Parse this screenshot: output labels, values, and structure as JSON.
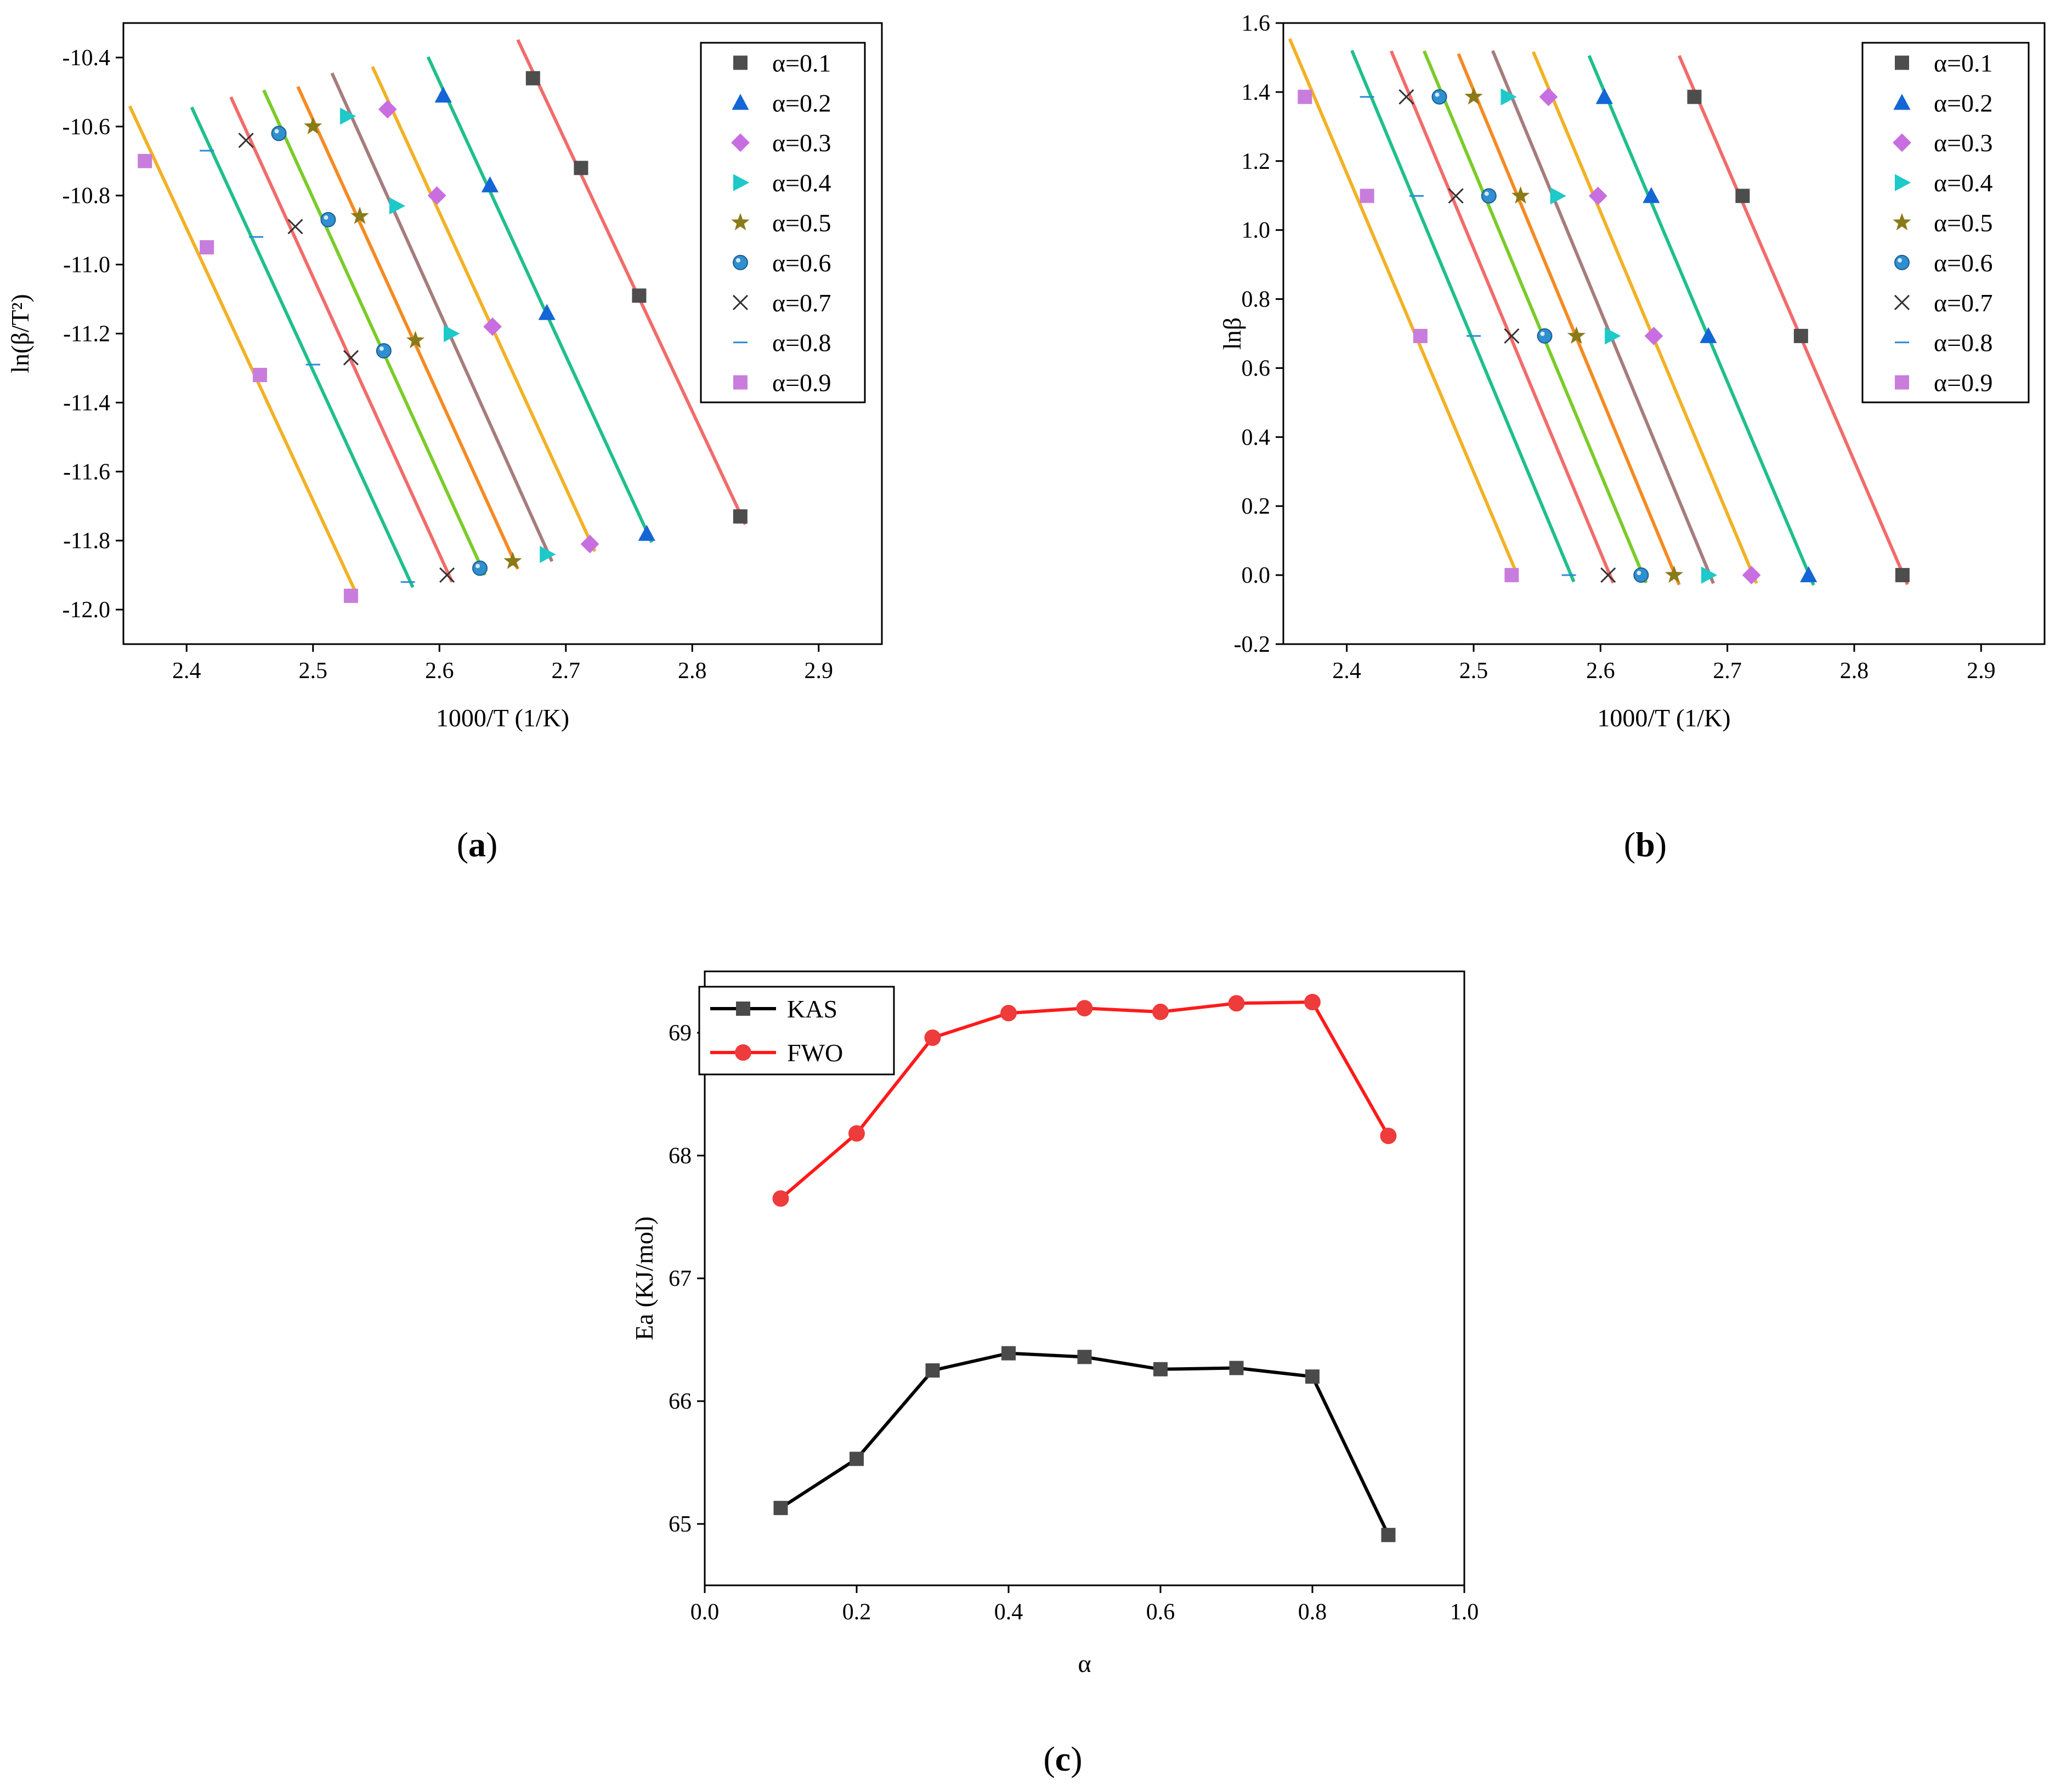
{
  "chart_data": [
    {
      "type": "scatter",
      "panel_label": [
        "(",
        "a",
        ")"
      ],
      "xlabel": "1000/T (1/K)",
      "ylabel": "ln(β/T²)",
      "xlim": [
        2.35,
        2.95
      ],
      "ylim": [
        -12.1,
        -10.3
      ],
      "x_ticks": [
        2.4,
        2.5,
        2.6,
        2.7,
        2.8,
        2.9
      ],
      "x_tick_labels": [
        "2.4",
        "2.5",
        "2.6",
        "2.7",
        "2.8",
        "2.9"
      ],
      "y_ticks": [
        -12.0,
        -11.8,
        -11.6,
        -11.4,
        -11.2,
        -11.0,
        -10.8,
        -10.6,
        -10.4
      ],
      "y_tick_labels": [
        "-12.0",
        "-11.8",
        "-11.6",
        "-11.4",
        "-11.2",
        "-11.0",
        "-10.8",
        "-10.6",
        "-10.4"
      ],
      "legend_position": "top-right",
      "series": [
        {
          "name": "α=0.1",
          "marker": "square",
          "marker_color": "#4d4d4d",
          "line_color": "#f26b6b",
          "x": [
            2.674,
            2.712,
            2.758,
            2.838
          ],
          "y": [
            -10.46,
            -10.72,
            -11.09,
            -11.73
          ]
        },
        {
          "name": "α=0.2",
          "marker": "triangle-up",
          "marker_color": "#1466d6",
          "line_color": "#1fbf8c",
          "x": [
            2.603,
            2.64,
            2.685,
            2.764
          ],
          "y": [
            -10.51,
            -10.77,
            -11.14,
            -11.78
          ]
        },
        {
          "name": "α=0.3",
          "marker": "diamond",
          "marker_color": "#c86ee0",
          "line_color": "#f2b125",
          "x": [
            2.559,
            2.598,
            2.642,
            2.719
          ],
          "y": [
            -10.55,
            -10.8,
            -11.18,
            -11.81
          ]
        },
        {
          "name": "α=0.4",
          "marker": "triangle-right",
          "marker_color": "#1dc9c9",
          "line_color": "#a67c7c",
          "x": [
            2.527,
            2.566,
            2.609,
            2.685
          ],
          "y": [
            -10.57,
            -10.83,
            -11.2,
            -11.84
          ]
        },
        {
          "name": "α=0.5",
          "marker": "star",
          "marker_color": "#8a7a18",
          "line_color": "#f58a22",
          "x": [
            2.5,
            2.537,
            2.581,
            2.658
          ],
          "y": [
            -10.6,
            -10.86,
            -11.22,
            -11.86
          ]
        },
        {
          "name": "α=0.6",
          "marker": "sphere",
          "marker_color": "#2f8fd0",
          "line_color": "#7acc29",
          "x": [
            2.473,
            2.512,
            2.556,
            2.632
          ],
          "y": [
            -10.62,
            -10.87,
            -11.25,
            -11.88
          ]
        },
        {
          "name": "α=0.7",
          "marker": "x",
          "marker_color": "#333333",
          "line_color": "#f26b6b",
          "x": [
            2.447,
            2.486,
            2.53,
            2.606
          ],
          "y": [
            -10.64,
            -10.89,
            -11.27,
            -11.9
          ]
        },
        {
          "name": "α=0.8",
          "marker": "dash",
          "marker_color": "#2c8ad6",
          "line_color": "#1fbf8c",
          "x": [
            2.416,
            2.455,
            2.5,
            2.575
          ],
          "y": [
            -10.67,
            -10.92,
            -11.29,
            -11.92
          ]
        },
        {
          "name": "α=0.9",
          "marker": "square",
          "marker_color": "#c87ddc",
          "line_color": "#f2b125",
          "x": [
            2.367,
            2.416,
            2.458,
            2.53
          ],
          "y": [
            -10.7,
            -10.95,
            -11.32,
            -11.96
          ]
        }
      ]
    },
    {
      "type": "scatter",
      "panel_label": [
        "(",
        "b",
        ")"
      ],
      "xlabel": "1000/T (1/K)",
      "ylabel": "lnβ",
      "xlim": [
        2.35,
        2.95
      ],
      "ylim": [
        -0.2,
        1.6
      ],
      "x_ticks": [
        2.4,
        2.5,
        2.6,
        2.7,
        2.8,
        2.9
      ],
      "x_tick_labels": [
        "2.4",
        "2.5",
        "2.6",
        "2.7",
        "2.8",
        "2.9"
      ],
      "y_ticks": [
        -0.2,
        0.0,
        0.2,
        0.4,
        0.6,
        0.8,
        1.0,
        1.2,
        1.4,
        1.6
      ],
      "y_tick_labels": [
        "-0.2",
        "0.0",
        "0.2",
        "0.4",
        "0.6",
        "0.8",
        "1.0",
        "1.2",
        "1.4",
        "1.6"
      ],
      "legend_position": "top-right",
      "series": [
        {
          "name": "α=0.1",
          "marker": "square",
          "marker_color": "#4d4d4d",
          "line_color": "#f26b6b",
          "x": [
            2.674,
            2.712,
            2.758,
            2.838
          ],
          "y": [
            1.386,
            1.099,
            0.693,
            0.0
          ]
        },
        {
          "name": "α=0.2",
          "marker": "triangle-up",
          "marker_color": "#1466d6",
          "line_color": "#1fbf8c",
          "x": [
            2.603,
            2.64,
            2.685,
            2.764
          ],
          "y": [
            1.386,
            1.099,
            0.693,
            0.0
          ]
        },
        {
          "name": "α=0.3",
          "marker": "diamond",
          "marker_color": "#c86ee0",
          "line_color": "#f2b125",
          "x": [
            2.559,
            2.598,
            2.642,
            2.719
          ],
          "y": [
            1.386,
            1.099,
            0.693,
            0.0
          ]
        },
        {
          "name": "α=0.4",
          "marker": "triangle-right",
          "marker_color": "#1dc9c9",
          "line_color": "#a67c7c",
          "x": [
            2.527,
            2.566,
            2.609,
            2.685
          ],
          "y": [
            1.386,
            1.099,
            0.693,
            0.0
          ]
        },
        {
          "name": "α=0.5",
          "marker": "star",
          "marker_color": "#8a7a18",
          "line_color": "#f58a22",
          "x": [
            2.5,
            2.537,
            2.581,
            2.658
          ],
          "y": [
            1.386,
            1.099,
            0.693,
            0.0
          ]
        },
        {
          "name": "α=0.6",
          "marker": "sphere",
          "marker_color": "#2f8fd0",
          "line_color": "#7acc29",
          "x": [
            2.473,
            2.512,
            2.556,
            2.632
          ],
          "y": [
            1.386,
            1.099,
            0.693,
            0.0
          ]
        },
        {
          "name": "α=0.7",
          "marker": "x",
          "marker_color": "#333333",
          "line_color": "#f26b6b",
          "x": [
            2.447,
            2.486,
            2.53,
            2.606
          ],
          "y": [
            1.386,
            1.099,
            0.693,
            0.0
          ]
        },
        {
          "name": "α=0.8",
          "marker": "dash",
          "marker_color": "#2c8ad6",
          "line_color": "#1fbf8c",
          "x": [
            2.416,
            2.455,
            2.5,
            2.575
          ],
          "y": [
            1.386,
            1.099,
            0.693,
            0.0
          ]
        },
        {
          "name": "α=0.9",
          "marker": "square",
          "marker_color": "#c87ddc",
          "line_color": "#f2b125",
          "x": [
            2.367,
            2.416,
            2.458,
            2.53
          ],
          "y": [
            1.386,
            1.099,
            0.693,
            0.0
          ]
        }
      ]
    },
    {
      "type": "line",
      "panel_label": [
        "(",
        "c",
        ")"
      ],
      "xlabel": "α",
      "ylabel": "Ea (KJ/mol)",
      "xlim": [
        0.0,
        1.0
      ],
      "ylim": [
        64.5,
        69.5
      ],
      "x_ticks": [
        0.0,
        0.2,
        0.4,
        0.6,
        0.8,
        1.0
      ],
      "x_tick_labels": [
        "0.0",
        "0.2",
        "0.4",
        "0.6",
        "0.8",
        "1.0"
      ],
      "y_ticks": [
        65,
        66,
        67,
        68,
        69
      ],
      "y_tick_labels": [
        "65",
        "66",
        "67",
        "68",
        "69"
      ],
      "legend_position": "top-left",
      "x": [
        0.1,
        0.2,
        0.3,
        0.4,
        0.5,
        0.6,
        0.7,
        0.8,
        0.9
      ],
      "series": [
        {
          "name": "KAS",
          "marker": "square",
          "marker_color": "#4a4a4a",
          "line_color": "#000000",
          "values": [
            65.13,
            65.53,
            66.25,
            66.39,
            66.36,
            66.26,
            66.27,
            66.2,
            64.91
          ]
        },
        {
          "name": "FWO",
          "marker": "circle",
          "marker_color": "#ee3b3b",
          "line_color": "#ff1a1a",
          "values": [
            67.65,
            68.18,
            68.96,
            69.16,
            69.2,
            69.17,
            69.24,
            69.25,
            68.16
          ]
        }
      ]
    }
  ]
}
